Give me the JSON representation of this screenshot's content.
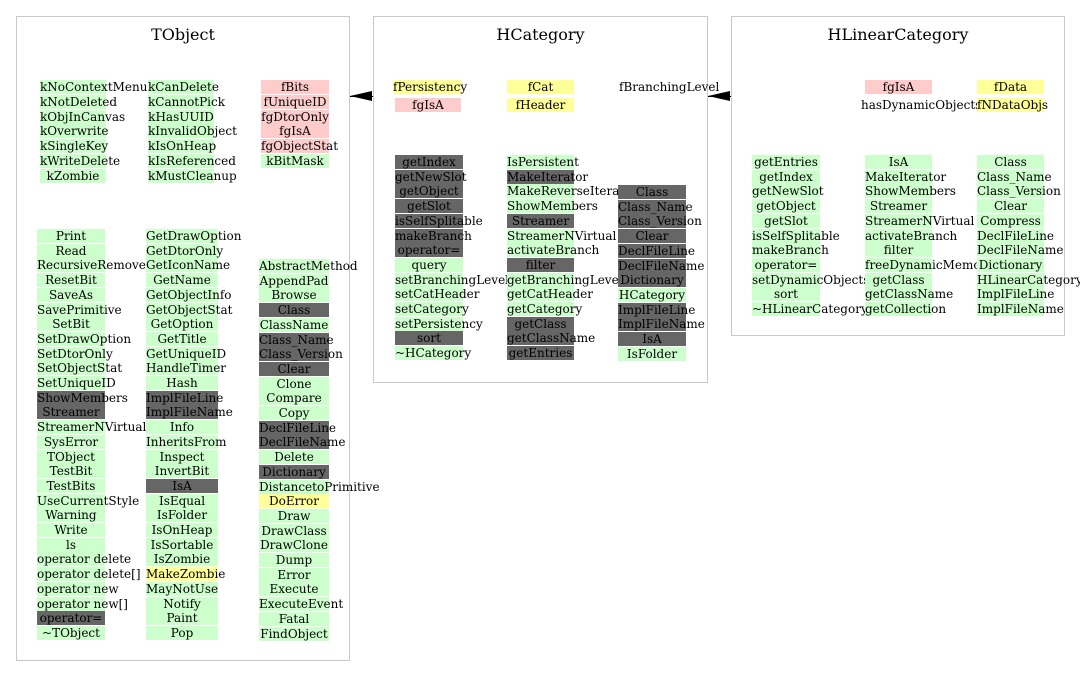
{
  "panels": {
    "tobject": {
      "title": "TObject"
    },
    "hcategory": {
      "title": "HCategory"
    },
    "hlinearcategory": {
      "title": "HLinearCategory"
    }
  },
  "colors": {
    "public": "#ccffcc",
    "protected_private": "#666666",
    "data_member": "#ffff99",
    "static": "#ffcccc"
  },
  "tobject": {
    "top_col1": [
      "kNoContextMenu",
      "kNotDeleted",
      "kObjInCanvas",
      "kOverwrite",
      "kSingleKey",
      "kWriteDelete",
      "kZombie"
    ],
    "top_col2": [
      "kCanDelete",
      "kCannotPick",
      "kHasUUID",
      "kInvalidObject",
      "kIsOnHeap",
      "kIsReferenced",
      "kMustCleanup"
    ],
    "top_col3": [
      "fBits",
      "fUniqueID",
      "fgDtorOnly",
      "fgIsA",
      "fgObjectStat",
      "kBitMask"
    ],
    "m_col1": [
      "Print",
      "Read",
      "RecursiveRemove",
      "ResetBit",
      "SaveAs",
      "SavePrimitive",
      "SetBit",
      "SetDrawOption",
      "SetDtorOnly",
      "SetObjectStat",
      "SetUniqueID",
      "ShowMembers",
      "Streamer",
      "StreamerNVirtual",
      "SysError",
      "TObject",
      "TestBit",
      "TestBits",
      "UseCurrentStyle",
      "Warning",
      "Write",
      "ls",
      "operator delete",
      "operator delete[]",
      "operator new",
      "operator new[]",
      "operator=",
      "~TObject"
    ],
    "m_col2": [
      "GetDrawOption",
      "GetDtorOnly",
      "GetIconName",
      "GetName",
      "GetObjectInfo",
      "GetObjectStat",
      "GetOption",
      "GetTitle",
      "GetUniqueID",
      "HandleTimer",
      "Hash",
      "ImplFileLine",
      "ImplFileName",
      "Info",
      "InheritsFrom",
      "Inspect",
      "InvertBit",
      "IsA",
      "IsEqual",
      "IsFolder",
      "IsOnHeap",
      "IsSortable",
      "IsZombie",
      "MakeZombie",
      "MayNotUse",
      "Notify",
      "Paint",
      "Pop"
    ],
    "m_col3": [
      "AbstractMethod",
      "AppendPad",
      "Browse",
      "Class",
      "ClassName",
      "Class_Name",
      "Class_Version",
      "Clear",
      "Clone",
      "Compare",
      "Copy",
      "DeclFileLine",
      "DeclFileName",
      "Delete",
      "Dictionary",
      "DistancetoPrimitive",
      "DoError",
      "Draw",
      "DrawClass",
      "DrawClone",
      "Dump",
      "Error",
      "Execute",
      "ExecuteEvent",
      "Fatal",
      "FindObject"
    ]
  },
  "hcategory": {
    "top_row1": [
      "fPersistency",
      "fCat",
      "fBranchingLevel"
    ],
    "top_row2": [
      "fgIsA",
      "fHeader"
    ],
    "m_col1": [
      "getIndex",
      "getNewSlot",
      "getObject",
      "getSlot",
      "isSelfSplitable",
      "makeBranch",
      "operator=",
      "query",
      "setBranchingLevel",
      "setCatHeader",
      "setCategory",
      "setPersistency",
      "sort",
      "~HCategory"
    ],
    "m_col2": [
      "IsPersistent",
      "MakeIterator",
      "MakeReverseIterator",
      "ShowMembers",
      "Streamer",
      "StreamerNVirtual",
      "activateBranch",
      "filter",
      "getBranchingLevel",
      "getCatHeader",
      "getCategory",
      "getClass",
      "getClassName",
      "getEntries"
    ],
    "m_col3": [
      "Class",
      "Class_Name",
      "Class_Version",
      "Clear",
      "DeclFileLine",
      "DeclFileName",
      "Dictionary",
      "HCategory",
      "ImplFileLine",
      "ImplFileName",
      "IsA",
      "IsFolder"
    ]
  },
  "hlinearcategory": {
    "top_row1": [
      "fgIsA",
      "fData"
    ],
    "top_row2": [
      "hasDynamicObjects",
      "fNDataObjs"
    ],
    "m_col1": [
      "getEntries",
      "getIndex",
      "getNewSlot",
      "getObject",
      "getSlot",
      "isSelfSplitable",
      "makeBranch",
      "operator=",
      "setDynamicObjects",
      "sort",
      "~HLinearCategory"
    ],
    "m_col2": [
      "IsA",
      "MakeIterator",
      "ShowMembers",
      "Streamer",
      "StreamerNVirtual",
      "activateBranch",
      "filter",
      "freeDynamicMemory",
      "getClass",
      "getClassName",
      "getCollection"
    ],
    "m_col3": [
      "Class",
      "Class_Name",
      "Class_Version",
      "Clear",
      "Compress",
      "DeclFileLine",
      "DeclFileName",
      "Dictionary",
      "HLinearCategory",
      "ImplFileLine",
      "ImplFileName"
    ]
  }
}
